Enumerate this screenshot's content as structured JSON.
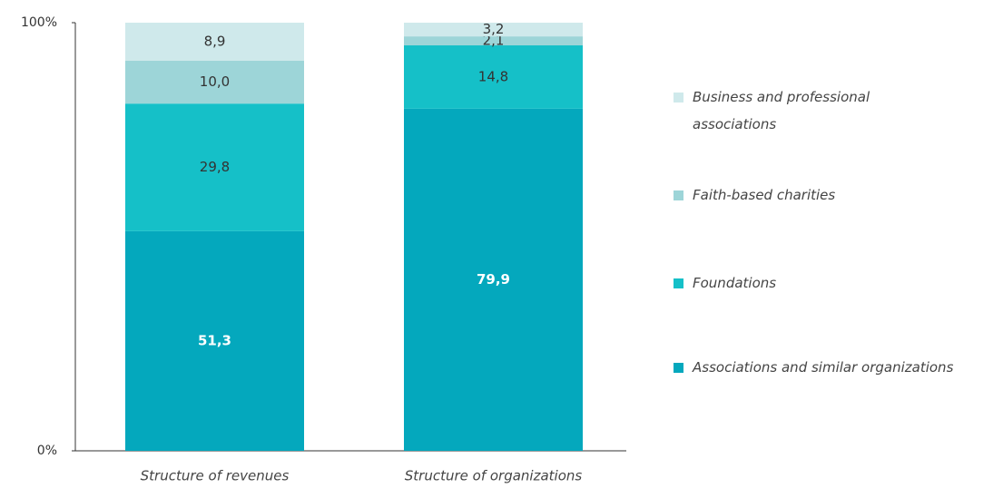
{
  "chart_data": {
    "type": "stacked-bar",
    "categories": [
      "Structure of revenues",
      "Structure of organizations"
    ],
    "series": [
      {
        "name": "Associations and similar organizations",
        "color": "#04a8bd",
        "values": [
          51.3,
          79.9
        ],
        "value_labels": [
          "51,3",
          "79,9"
        ]
      },
      {
        "name": "Foundations",
        "color": "#15c0c8",
        "values": [
          29.8,
          14.8
        ],
        "value_labels": [
          "29,8",
          "14,8"
        ]
      },
      {
        "name": "Faith-based charities",
        "color": "#9dd5d8",
        "values": [
          10.0,
          2.1
        ],
        "value_labels": [
          "10,0",
          "2,1"
        ]
      },
      {
        "name": "Business and professional associations",
        "color": "#cfe9eb",
        "values": [
          8.9,
          3.2
        ],
        "value_labels": [
          "8,9",
          "3,2"
        ]
      }
    ],
    "ylim": [
      0,
      100
    ],
    "yticks": [
      {
        "value": 0,
        "label": "0%"
      },
      {
        "value": 100,
        "label": "100%"
      }
    ],
    "legend": "right"
  }
}
